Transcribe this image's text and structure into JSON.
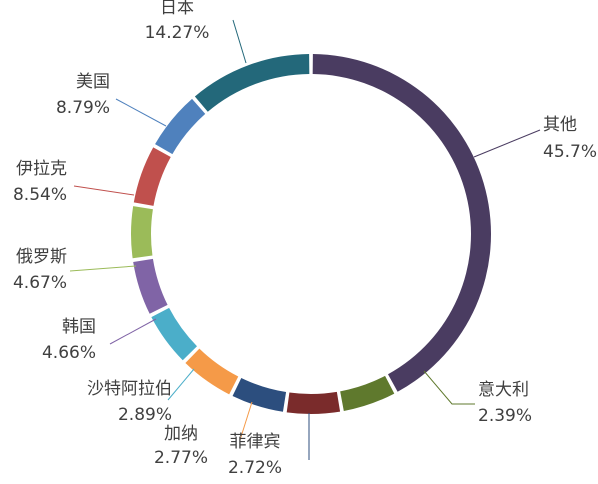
{
  "chart_data": {
    "type": "pie",
    "variant": "donut",
    "title": "",
    "legend": "none",
    "slices": [
      {
        "label": "其他",
        "value": 45.7,
        "value_label": "45.7%",
        "color": "#4A3C61"
      },
      {
        "label": "意大利",
        "value": 2.39,
        "value_label": "2.39%",
        "color": "#5F792D"
      },
      {
        "label": "菲律宾",
        "value": 2.72,
        "value_label": "2.72%",
        "color": "#7A2B2B"
      },
      {
        "label": "加纳",
        "value": 2.77,
        "value_label": "2.77%",
        "color": "#2C4E7E"
      },
      {
        "label": "沙特阿拉伯",
        "value": 2.89,
        "value_label": "2.89%",
        "color": "#F59A48"
      },
      {
        "label": "韩国",
        "value": 4.66,
        "value_label": "4.66%",
        "color": "#4BAEC9"
      },
      {
        "label": "俄罗斯",
        "value": 4.67,
        "value_label": "4.67%",
        "color": "#8064A6"
      },
      {
        "label": "伊拉克",
        "value": 8.54,
        "value_label": "8.54%",
        "color": "#9BBB59"
      },
      {
        "label": "美国",
        "value": 8.79,
        "value_label": "8.79%",
        "color": "#C0504D"
      },
      {
        "label": "日本",
        "value": 14.27,
        "value_label": "14.27%",
        "color": "#4F81BD"
      }
    ],
    "extra_slice_color_unused": "#23687A"
  }
}
